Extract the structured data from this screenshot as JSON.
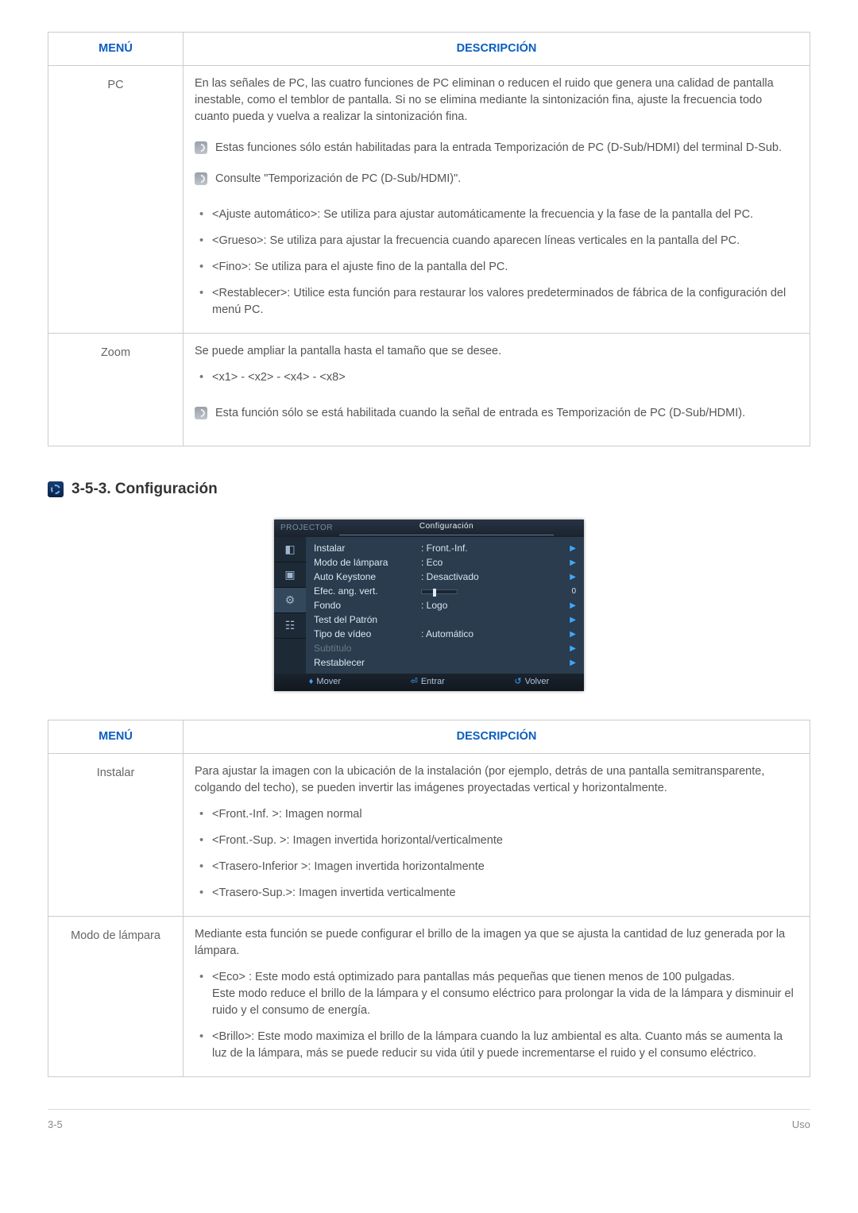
{
  "table1": {
    "head_menu": "MENÚ",
    "head_desc": "DESCRIPCIÓN",
    "rows": [
      {
        "menu": "PC",
        "intro": "En las señales de PC, las cuatro funciones de PC eliminan o reducen el ruido que genera una calidad de pantalla inestable, como el temblor de pantalla. Si no se elimina mediante la sintonización fina, ajuste la frecuencia todo cuanto pueda y vuelva a realizar la sintonización fina.",
        "note1": "Estas funciones sólo están habilitadas para la entrada Temporización de PC (D-Sub/HDMI) del terminal D-Sub.",
        "note2": "Consulte \"Temporización de PC (D-Sub/HDMI)\".",
        "b1": "<Ajuste automático>: Se utiliza para ajustar automáticamente la frecuencia y la fase de la pantalla del PC.",
        "b2": "<Grueso>: Se utiliza para ajustar la frecuencia cuando aparecen líneas verticales en la pantalla del PC.",
        "b3": "<Fino>: Se utiliza para el ajuste fino de la pantalla del PC.",
        "b4": "<Restablecer>: Utilice esta función para restaurar los valores predeterminados de fábrica de la configuración del menú PC."
      },
      {
        "menu": "Zoom",
        "intro": "Se puede ampliar la pantalla hasta el tamaño que se desee.",
        "b1": "<x1> - <x2> - <x4> - <x8>",
        "note1": "Esta función sólo se está habilitada cuando la señal de entrada es Temporización de PC (D-Sub/HDMI)."
      }
    ]
  },
  "section_title": "3-5-3. Configuración",
  "osd": {
    "brand": "PROJECTOR",
    "title": "Configuración",
    "items": [
      {
        "label": "Instalar",
        "value": ": Front.-Inf.",
        "arrow": true
      },
      {
        "label": "Modo de lámpara",
        "value": ": Eco",
        "arrow": true
      },
      {
        "label": "Auto Keystone",
        "value": ": Desactivado",
        "arrow": true
      },
      {
        "label": "Efec. ang. vert.",
        "slider": true,
        "num": "0"
      },
      {
        "label": "Fondo",
        "value": ": Logo",
        "arrow": true
      },
      {
        "label": "Test del Patrón",
        "value": "",
        "arrow": true
      },
      {
        "label": "Tipo de vídeo",
        "value": ": Automático",
        "arrow": true
      },
      {
        "label": "Subtítulo",
        "value": "",
        "disabled": true,
        "arrow": true
      },
      {
        "label": "Restablecer",
        "value": "",
        "arrow": true
      }
    ],
    "foot_move": "Mover",
    "foot_enter": "Entrar",
    "foot_back": "Volver"
  },
  "table2": {
    "head_menu": "MENÚ",
    "head_desc": "DESCRIPCIÓN",
    "rows": [
      {
        "menu": "Instalar",
        "intro": "Para ajustar la imagen con la ubicación de la instalación (por ejemplo, detrás de una pantalla semitransparente, colgando del techo), se pueden invertir las imágenes proyectadas vertical y horizontalmente.",
        "b1": "<Front.-Inf. >: Imagen normal",
        "b2": "<Front.-Sup. >: Imagen invertida horizontal/verticalmente",
        "b3": "<Trasero-Inferior >: Imagen invertida horizontalmente",
        "b4": "<Trasero-Sup.>: Imagen invertida verticalmente"
      },
      {
        "menu": "Modo de lámpara",
        "intro": "Mediante esta función se puede configurar el brillo de la imagen ya que se ajusta la cantidad de luz generada por la lámpara.",
        "b1": "<Eco> : Este modo está optimizado para pantallas más pequeñas que tienen menos de 100 pulgadas.\nEste modo reduce el brillo de la lámpara y el consumo eléctrico para prolongar la vida de la lámpara y disminuir el ruido y el consumo de energía.",
        "b2": "<Brillo>: Este modo maximiza el brillo de la lámpara cuando la luz ambiental es alta. Cuanto más se aumenta la luz de la lámpara, más se puede reducir su vida útil y puede incrementarse el ruido y el consumo eléctrico."
      }
    ]
  },
  "footer": {
    "left": "3-5",
    "right": "Uso"
  }
}
